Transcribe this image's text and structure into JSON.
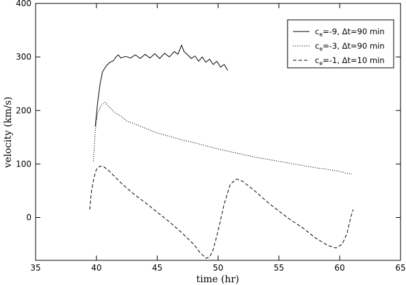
{
  "chart_data": {
    "type": "line",
    "xlabel": "time (hr)",
    "ylabel": "velocity (km/s)",
    "xlim": [
      35,
      65
    ],
    "ylim": [
      -80,
      400
    ],
    "xticks": [
      35,
      40,
      45,
      50,
      55,
      60,
      65
    ],
    "yticks": [
      0,
      100,
      200,
      300,
      400
    ],
    "legend_position": "top-right",
    "grid": false,
    "series": [
      {
        "name": "c_e=-9, Δt=90 min",
        "label_base": "c",
        "label_sub": "e",
        "label_rest": "=-9, Δt=90 min",
        "style": "solid",
        "points": [
          [
            39.9,
            170
          ],
          [
            40.1,
            215
          ],
          [
            40.3,
            250
          ],
          [
            40.5,
            272
          ],
          [
            40.8,
            283
          ],
          [
            41.1,
            290
          ],
          [
            41.4,
            293
          ],
          [
            41.6,
            300
          ],
          [
            41.8,
            304
          ],
          [
            42.0,
            298
          ],
          [
            42.4,
            301
          ],
          [
            42.8,
            298
          ],
          [
            43.2,
            304
          ],
          [
            43.6,
            297
          ],
          [
            44.0,
            305
          ],
          [
            44.4,
            298
          ],
          [
            44.8,
            306
          ],
          [
            45.2,
            297
          ],
          [
            45.6,
            307
          ],
          [
            46.0,
            300
          ],
          [
            46.4,
            310
          ],
          [
            46.7,
            305
          ],
          [
            46.9,
            316
          ],
          [
            47.0,
            322
          ],
          [
            47.2,
            310
          ],
          [
            47.5,
            304
          ],
          [
            47.8,
            297
          ],
          [
            48.1,
            302
          ],
          [
            48.4,
            292
          ],
          [
            48.7,
            300
          ],
          [
            49.0,
            290
          ],
          [
            49.3,
            296
          ],
          [
            49.6,
            286
          ],
          [
            49.9,
            292
          ],
          [
            50.2,
            281
          ],
          [
            50.5,
            286
          ],
          [
            50.8,
            275
          ]
        ]
      },
      {
        "name": "c_e=-3, Δt=90 min",
        "label_base": "c",
        "label_sub": "e",
        "label_rest": "=-3, Δt=90 min",
        "style": "dotted",
        "points": [
          [
            39.75,
            105
          ],
          [
            39.9,
            160
          ],
          [
            40.1,
            195
          ],
          [
            40.4,
            210
          ],
          [
            40.7,
            215
          ],
          [
            41.0,
            208
          ],
          [
            41.5,
            196
          ],
          [
            42.0,
            190
          ],
          [
            42.5,
            180
          ],
          [
            43.0,
            176
          ],
          [
            44.0,
            167
          ],
          [
            45.0,
            158
          ],
          [
            46.0,
            152
          ],
          [
            47.0,
            145
          ],
          [
            48.0,
            140
          ],
          [
            49.0,
            134
          ],
          [
            50.0,
            128
          ],
          [
            51.0,
            123
          ],
          [
            52.0,
            118
          ],
          [
            53.0,
            113
          ],
          [
            54.0,
            109
          ],
          [
            55.0,
            105
          ],
          [
            56.0,
            101
          ],
          [
            57.0,
            97
          ],
          [
            58.0,
            93
          ],
          [
            59.0,
            90
          ],
          [
            60.0,
            86
          ],
          [
            60.5,
            83
          ],
          [
            61.0,
            81
          ]
        ]
      },
      {
        "name": "c_e=-1, Δt=10 min",
        "label_base": "c",
        "label_sub": "e",
        "label_rest": "=-1, Δt=10 min",
        "style": "dashed",
        "points": [
          [
            39.45,
            15
          ],
          [
            39.6,
            50
          ],
          [
            39.8,
            75
          ],
          [
            40.0,
            90
          ],
          [
            40.3,
            96
          ],
          [
            40.6,
            95
          ],
          [
            41.0,
            88
          ],
          [
            42.0,
            65
          ],
          [
            43.0,
            45
          ],
          [
            44.0,
            28
          ],
          [
            45.0,
            10
          ],
          [
            46.0,
            -8
          ],
          [
            47.0,
            -28
          ],
          [
            48.0,
            -50
          ],
          [
            48.5,
            -65
          ],
          [
            49.0,
            -76
          ],
          [
            49.3,
            -74
          ],
          [
            49.6,
            -60
          ],
          [
            50.0,
            -25
          ],
          [
            50.5,
            25
          ],
          [
            51.0,
            62
          ],
          [
            51.5,
            72
          ],
          [
            52.0,
            68
          ],
          [
            53.0,
            50
          ],
          [
            54.0,
            30
          ],
          [
            55.0,
            12
          ],
          [
            56.0,
            -5
          ],
          [
            57.0,
            -20
          ],
          [
            58.0,
            -38
          ],
          [
            59.0,
            -52
          ],
          [
            59.7,
            -57
          ],
          [
            60.2,
            -50
          ],
          [
            60.6,
            -30
          ],
          [
            60.9,
            0
          ],
          [
            61.1,
            15
          ]
        ]
      }
    ]
  }
}
